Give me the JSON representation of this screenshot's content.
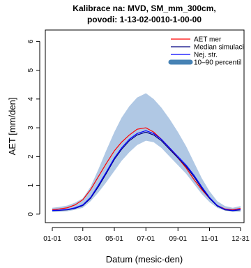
{
  "chart_data": {
    "type": "line",
    "title_line1": "Kalibrace na: MVD, SM_mm_300cm,",
    "title_line2": "povodi: 1-13-02-0010-1-00-00",
    "xlabel": "Datum (mesic-den)",
    "ylabel": "AET [mm/den]",
    "x_ticks": [
      "01-01",
      "03-01",
      "05-01",
      "07-01",
      "09-01",
      "11-01",
      "12-31"
    ],
    "x_tick_days": [
      1,
      60,
      121,
      182,
      244,
      305,
      365
    ],
    "xlim": [
      1,
      365
    ],
    "ylim": [
      -0.15,
      6.3
    ],
    "y_ticks": [
      0,
      1,
      2,
      3,
      4,
      5,
      6
    ],
    "legend": {
      "placement": "top-right",
      "entries": [
        {
          "label": "AET mer",
          "color": "#ff0000",
          "kind": "line"
        },
        {
          "label": "Median simulaci",
          "color": "#000080",
          "kind": "line"
        },
        {
          "label": "Nej. str.",
          "color": "#0000ff",
          "kind": "line"
        },
        {
          "label": "10–90 percentil",
          "color": "#4682b4",
          "kind": "band"
        }
      ]
    },
    "band_color": "#b0c8e4",
    "series": [
      {
        "name": "10–90 percentil",
        "role": "band",
        "x": [
          1,
          15,
          30,
          45,
          60,
          75,
          90,
          105,
          121,
          135,
          150,
          165,
          182,
          197,
          212,
          228,
          244,
          260,
          275,
          290,
          305,
          320,
          335,
          350,
          365
        ],
        "lo": [
          0.08,
          0.08,
          0.1,
          0.15,
          0.22,
          0.45,
          0.75,
          1.1,
          1.5,
          1.85,
          2.15,
          2.4,
          2.55,
          2.5,
          2.3,
          2.0,
          1.7,
          1.4,
          1.05,
          0.7,
          0.42,
          0.22,
          0.12,
          0.08,
          0.08
        ],
        "hi": [
          0.22,
          0.25,
          0.3,
          0.4,
          0.55,
          0.95,
          1.55,
          2.2,
          2.85,
          3.35,
          3.75,
          4.05,
          4.2,
          4.0,
          3.7,
          3.3,
          2.85,
          2.35,
          1.8,
          1.25,
          0.8,
          0.45,
          0.28,
          0.22,
          0.28
        ]
      },
      {
        "name": "AET mer",
        "color": "#ff0000",
        "x": [
          1,
          15,
          30,
          45,
          60,
          75,
          90,
          105,
          121,
          135,
          150,
          165,
          182,
          197,
          212,
          228,
          244,
          260,
          275,
          290,
          305,
          320,
          335,
          350,
          365
        ],
        "y": [
          0.15,
          0.18,
          0.22,
          0.32,
          0.5,
          0.85,
          1.3,
          1.75,
          2.2,
          2.5,
          2.75,
          2.95,
          3.0,
          2.85,
          2.6,
          2.3,
          1.95,
          1.6,
          1.2,
          0.85,
          0.55,
          0.3,
          0.18,
          0.15,
          0.2
        ]
      },
      {
        "name": "Median simulaci",
        "color": "#000080",
        "x": [
          1,
          15,
          30,
          45,
          60,
          75,
          90,
          105,
          121,
          135,
          150,
          165,
          182,
          197,
          212,
          228,
          244,
          260,
          275,
          290,
          305,
          320,
          335,
          350,
          365
        ],
        "y": [
          0.12,
          0.13,
          0.15,
          0.2,
          0.3,
          0.55,
          0.95,
          1.4,
          1.9,
          2.25,
          2.55,
          2.75,
          2.85,
          2.75,
          2.55,
          2.25,
          1.95,
          1.65,
          1.3,
          0.9,
          0.55,
          0.28,
          0.15,
          0.12,
          0.15
        ]
      },
      {
        "name": "Nej. str.",
        "color": "#0000ff",
        "x": [
          1,
          15,
          30,
          45,
          60,
          75,
          90,
          105,
          121,
          135,
          150,
          165,
          182,
          197,
          212,
          228,
          244,
          260,
          275,
          290,
          305,
          320,
          335,
          350,
          365
        ],
        "y": [
          0.13,
          0.14,
          0.16,
          0.22,
          0.32,
          0.58,
          1.0,
          1.45,
          1.95,
          2.3,
          2.6,
          2.8,
          2.9,
          2.8,
          2.6,
          2.3,
          2.0,
          1.7,
          1.35,
          0.95,
          0.58,
          0.3,
          0.16,
          0.13,
          0.16
        ]
      }
    ]
  }
}
